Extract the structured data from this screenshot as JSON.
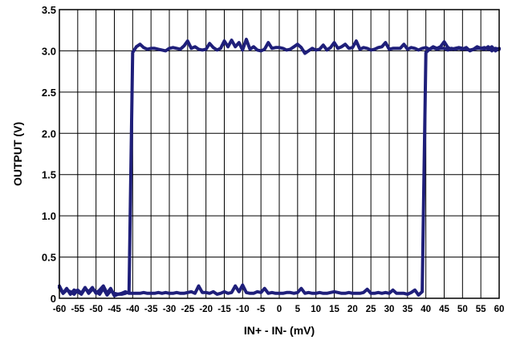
{
  "chart_data": {
    "type": "line",
    "title": "",
    "xlabel": "IN+ - IN- (mV)",
    "ylabel": "OUTPUT (V)",
    "xlim": [
      -60,
      60
    ],
    "ylim": [
      0,
      3.5
    ],
    "x_ticks": [
      -60,
      -55,
      -50,
      -45,
      -40,
      -35,
      -30,
      -25,
      -20,
      -15,
      -10,
      -5,
      0,
      5,
      10,
      15,
      20,
      25,
      30,
      35,
      40,
      45,
      50,
      55,
      60
    ],
    "x_tick_labels": [
      "-60",
      "-55",
      "-50",
      "-45",
      "-40",
      "-35",
      "-30",
      "-25",
      "-20",
      "-15",
      "-10",
      "-5",
      "0",
      "5",
      "10",
      "15",
      "20",
      "25",
      "30",
      "35",
      "40",
      "45",
      "50",
      "55",
      "60"
    ],
    "y_ticks": [
      0,
      0.5,
      1.0,
      1.5,
      2.0,
      2.5,
      3.0,
      3.5
    ],
    "y_tick_labels": [
      "0",
      "0.5",
      "1.0",
      "1.5",
      "2.0",
      "2.5",
      "3.0",
      "3.5"
    ],
    "grid": true,
    "color": "#1f1f7a",
    "series": [
      {
        "name": "",
        "x": [
          -60,
          -59,
          -58,
          -57,
          -56,
          -55,
          -54,
          -53,
          -52,
          -51,
          -50,
          -49,
          -48,
          -47,
          -46,
          -45,
          -44,
          -43,
          -42,
          -41,
          -40,
          -39,
          -38,
          -37,
          -36,
          -35,
          -34,
          -33,
          -32,
          -31,
          -30,
          -29,
          -28,
          -27,
          -26,
          -25,
          -24,
          -23,
          -22,
          -21,
          -20,
          -19,
          -18,
          -17,
          -16,
          -15,
          -14,
          -13,
          -12,
          -11,
          -10,
          -9,
          -8,
          -7,
          -6,
          -5,
          -4,
          -3,
          -2,
          -1,
          0,
          1,
          2,
          3,
          4,
          5,
          6,
          7,
          8,
          9,
          10,
          11,
          12,
          13,
          14,
          15,
          16,
          17,
          18,
          19,
          20,
          21,
          22,
          23,
          24,
          25,
          26,
          27,
          28,
          29,
          30,
          31,
          32,
          33,
          34,
          35,
          36,
          37,
          38,
          39,
          40,
          41,
          42,
          43,
          44,
          45,
          46,
          47,
          48,
          49,
          50,
          51,
          52,
          53,
          54,
          55,
          56,
          57,
          58,
          59,
          60
        ],
        "y": [
          0.15,
          0.06,
          0.12,
          0.05,
          0.1,
          0.08,
          0.05,
          0.12,
          0.08,
          0.13,
          0.06,
          0.1,
          0.15,
          0.06,
          0.12,
          0.03,
          0.05,
          0.05,
          0.06,
          0.08,
          2.98,
          3.05,
          3.08,
          3.04,
          3.02,
          3.03,
          3.03,
          3.02,
          3.01,
          3.0,
          3.03,
          3.04,
          3.03,
          3.02,
          3.06,
          3.12,
          3.03,
          3.05,
          3.02,
          3.01,
          3.02,
          3.09,
          3.04,
          3.01,
          3.03,
          3.12,
          3.05,
          3.13,
          3.05,
          3.1,
          3.01,
          3.14,
          3.02,
          3.05,
          3.01,
          3.0,
          3.02,
          3.1,
          3.03,
          3.04,
          3.04,
          3.03,
          3.01,
          3.02,
          3.05,
          3.08,
          3.04,
          2.97,
          3.0,
          3.03,
          3.01,
          3.02,
          3.07,
          3.01,
          3.04,
          3.1,
          3.03,
          3.05,
          3.08,
          3.03,
          3.04,
          3.12,
          3.02,
          3.04,
          3.03,
          3.01,
          3.02,
          3.04,
          3.05,
          3.1,
          3.02,
          3.03,
          3.03,
          3.03,
          3.08,
          3.02,
          3.04,
          3.03,
          3.01,
          3.03,
          3.04,
          3.02,
          3.05,
          3.03,
          3.05,
          3.11,
          3.04,
          3.02,
          3.03,
          3.04,
          3.03,
          3.02,
          3.01,
          3.02,
          3.03,
          3.03,
          3.02,
          3.05,
          3.0,
          3.03,
          3.02
        ]
      },
      {
        "name": "",
        "x": [
          60,
          59,
          58,
          57,
          56,
          55,
          54,
          53,
          52,
          51,
          50,
          49,
          48,
          47,
          46,
          45,
          44,
          43,
          42,
          41,
          40,
          39,
          38,
          37,
          36,
          35,
          34,
          33,
          32,
          31,
          30,
          29,
          28,
          27,
          26,
          25,
          24,
          23,
          22,
          21,
          20,
          19,
          18,
          17,
          16,
          15,
          14,
          13,
          12,
          11,
          10,
          9,
          8,
          7,
          6,
          5,
          4,
          3,
          2,
          1,
          0,
          -1,
          -2,
          -3,
          -4,
          -5,
          -6,
          -7,
          -8,
          -9,
          -10,
          -11,
          -12,
          -13,
          -14,
          -15,
          -16,
          -17,
          -18,
          -19,
          -20,
          -21,
          -22,
          -23,
          -24,
          -25,
          -26,
          -27,
          -28,
          -29,
          -30,
          -31,
          -32,
          -33,
          -34,
          -35,
          -36,
          -37,
          -38,
          -39,
          -40,
          -41,
          -42,
          -43,
          -44,
          -45,
          -46,
          -47,
          -48,
          -49,
          -50,
          -51,
          -52,
          -53,
          -54,
          -55,
          -56,
          -57,
          -58,
          -59,
          -60
        ],
        "y": [
          3.03,
          3.0,
          3.05,
          3.02,
          3.04,
          3.03,
          3.05,
          3.02,
          3.0,
          3.04,
          3.02,
          3.03,
          3.02,
          3.03,
          3.01,
          3.03,
          3.03,
          3.02,
          3.04,
          3.02,
          2.98,
          0.08,
          0.04,
          0.1,
          0.07,
          0.05,
          0.06,
          0.06,
          0.06,
          0.1,
          0.06,
          0.07,
          0.06,
          0.07,
          0.06,
          0.06,
          0.11,
          0.07,
          0.06,
          0.06,
          0.06,
          0.07,
          0.06,
          0.06,
          0.07,
          0.08,
          0.07,
          0.06,
          0.06,
          0.07,
          0.06,
          0.06,
          0.07,
          0.06,
          0.12,
          0.07,
          0.06,
          0.07,
          0.07,
          0.06,
          0.06,
          0.06,
          0.07,
          0.06,
          0.12,
          0.07,
          0.08,
          0.06,
          0.06,
          0.07,
          0.16,
          0.08,
          0.15,
          0.07,
          0.06,
          0.08,
          0.06,
          0.05,
          0.08,
          0.06,
          0.07,
          0.07,
          0.15,
          0.06,
          0.08,
          0.07,
          0.06,
          0.06,
          0.07,
          0.06,
          0.06,
          0.07,
          0.06,
          0.07,
          0.06,
          0.06,
          0.06,
          0.07,
          0.06,
          0.06,
          0.06,
          0.06,
          0.08,
          0.06,
          0.05,
          0.06,
          0.09,
          0.04,
          0.12,
          0.05,
          0.08,
          0.11,
          0.06,
          0.13,
          0.06,
          0.1,
          0.05,
          0.08,
          0.1,
          0.06,
          0.13
        ]
      }
    ]
  }
}
